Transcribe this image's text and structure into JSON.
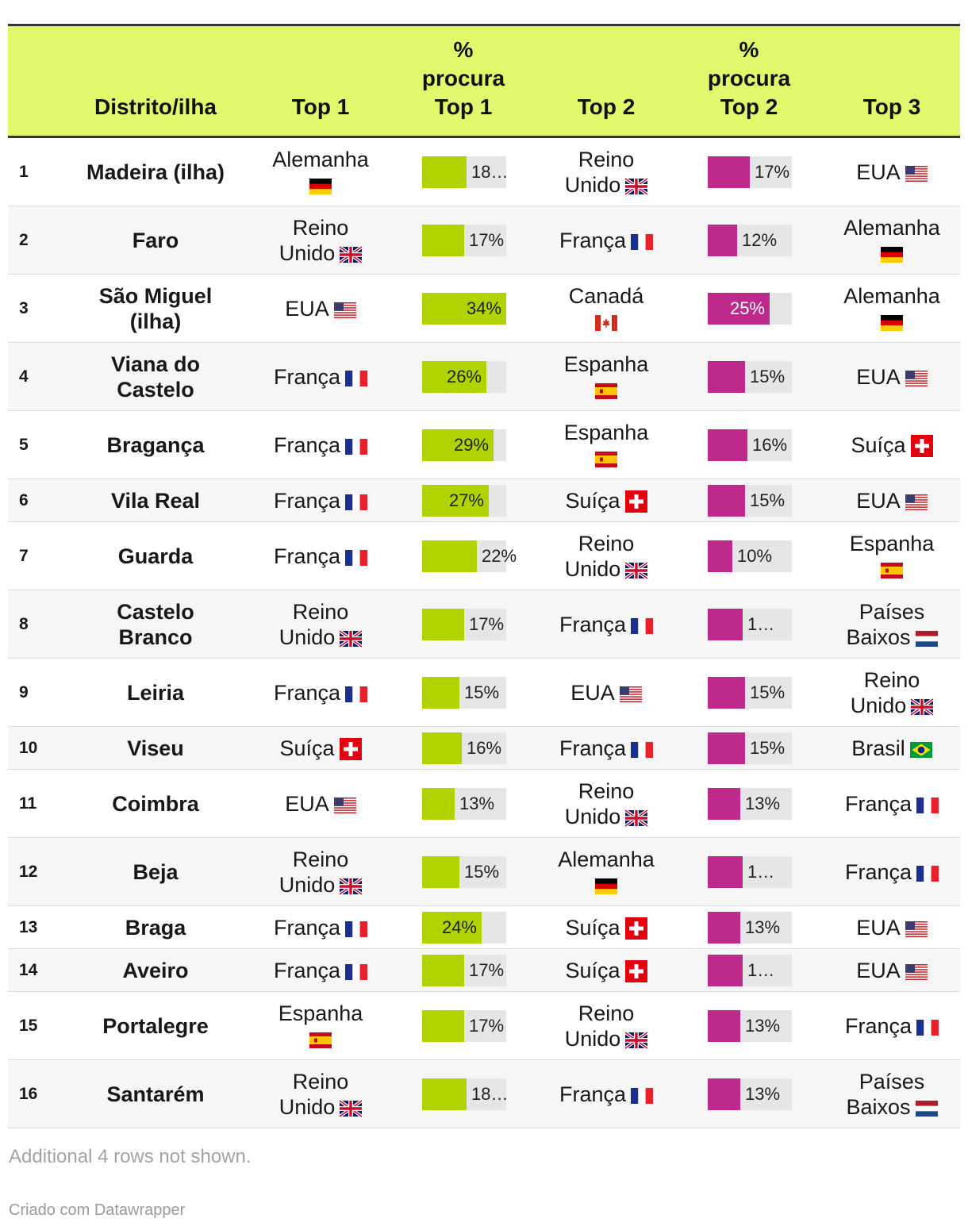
{
  "chart_data": {
    "type": "table",
    "columns": {
      "rank": "",
      "district": "Distrito/ilha",
      "top1": "Top 1",
      "pct_top1": [
        "%",
        "procura",
        "Top 1"
      ],
      "top2": "Top 2",
      "pct_top2": [
        "%",
        "procura",
        "Top 2"
      ],
      "top3": "Top 3"
    },
    "colors": {
      "header_bg": "#e2f86c",
      "bar_top1": "#b1d300",
      "bar_top2": "#bd2a8b",
      "track": "#e6e6e6"
    },
    "rows": [
      {
        "rank": "1",
        "district": "Madeira (ilha)",
        "top1": "Alemanha",
        "top1_flag": "de",
        "pct1": 18,
        "pct1_label": "18…",
        "top2": "Reino Unido",
        "top2_flag": "gb",
        "pct2": 17,
        "pct2_label": "17%",
        "top3": "EUA",
        "top3_flag": "us"
      },
      {
        "rank": "2",
        "district": "Faro",
        "top1": "Reino Unido",
        "top1_flag": "gb",
        "pct1": 17,
        "pct1_label": "17%",
        "top2": "França",
        "top2_flag": "fr",
        "pct2": 12,
        "pct2_label": "12%",
        "top3": "Alemanha",
        "top3_flag": "de"
      },
      {
        "rank": "3",
        "district": "São Miguel (ilha)",
        "top1": "EUA",
        "top1_flag": "us",
        "pct1": 34,
        "pct1_label": "34%",
        "top2": "Canadá",
        "top2_flag": "ca",
        "pct2": 25,
        "pct2_label": "25%",
        "top3": "Alemanha",
        "top3_flag": "de"
      },
      {
        "rank": "4",
        "district": "Viana do Castelo",
        "top1": "França",
        "top1_flag": "fr",
        "pct1": 26,
        "pct1_label": "26%",
        "top2": "Espanha",
        "top2_flag": "es",
        "pct2": 15,
        "pct2_label": "15%",
        "top3": "EUA",
        "top3_flag": "us"
      },
      {
        "rank": "5",
        "district": "Bragança",
        "top1": "França",
        "top1_flag": "fr",
        "pct1": 29,
        "pct1_label": "29%",
        "top2": "Espanha",
        "top2_flag": "es",
        "pct2": 16,
        "pct2_label": "16%",
        "top3": "Suíça",
        "top3_flag": "ch"
      },
      {
        "rank": "6",
        "district": "Vila Real",
        "top1": "França",
        "top1_flag": "fr",
        "pct1": 27,
        "pct1_label": "27%",
        "top2": "Suíça",
        "top2_flag": "ch",
        "pct2": 15,
        "pct2_label": "15%",
        "top3": "EUA",
        "top3_flag": "us"
      },
      {
        "rank": "7",
        "district": "Guarda",
        "top1": "França",
        "top1_flag": "fr",
        "pct1": 22,
        "pct1_label": "22%",
        "top2": "Reino Unido",
        "top2_flag": "gb",
        "pct2": 10,
        "pct2_label": "10%",
        "top3": "Espanha",
        "top3_flag": "es"
      },
      {
        "rank": "8",
        "district": "Castelo Branco",
        "top1": "Reino Unido",
        "top1_flag": "gb",
        "pct1": 17,
        "pct1_label": "17%",
        "top2": "França",
        "top2_flag": "fr",
        "pct2": 14,
        "pct2_label": "1…",
        "top3": "Países Baixos",
        "top3_flag": "nl"
      },
      {
        "rank": "9",
        "district": "Leiria",
        "top1": "França",
        "top1_flag": "fr",
        "pct1": 15,
        "pct1_label": "15%",
        "top2": "EUA",
        "top2_flag": "us",
        "pct2": 15,
        "pct2_label": "15%",
        "top3": "Reino Unido",
        "top3_flag": "gb"
      },
      {
        "rank": "10",
        "district": "Viseu",
        "top1": "Suíça",
        "top1_flag": "ch",
        "pct1": 16,
        "pct1_label": "16%",
        "top2": "França",
        "top2_flag": "fr",
        "pct2": 15,
        "pct2_label": "15%",
        "top3": "Brasil",
        "top3_flag": "br"
      },
      {
        "rank": "11",
        "district": "Coimbra",
        "top1": "EUA",
        "top1_flag": "us",
        "pct1": 13,
        "pct1_label": "13%",
        "top2": "Reino Unido",
        "top2_flag": "gb",
        "pct2": 13,
        "pct2_label": "13%",
        "top3": "França",
        "top3_flag": "fr"
      },
      {
        "rank": "12",
        "district": "Beja",
        "top1": "Reino Unido",
        "top1_flag": "gb",
        "pct1": 15,
        "pct1_label": "15%",
        "top2": "Alemanha",
        "top2_flag": "de",
        "pct2": 14,
        "pct2_label": "1…",
        "top3": "França",
        "top3_flag": "fr"
      },
      {
        "rank": "13",
        "district": "Braga",
        "top1": "França",
        "top1_flag": "fr",
        "pct1": 24,
        "pct1_label": "24%",
        "top2": "Suíça",
        "top2_flag": "ch",
        "pct2": 13,
        "pct2_label": "13%",
        "top3": "EUA",
        "top3_flag": "us"
      },
      {
        "rank": "14",
        "district": "Aveiro",
        "top1": "França",
        "top1_flag": "fr",
        "pct1": 17,
        "pct1_label": "17%",
        "top2": "Suíça",
        "top2_flag": "ch",
        "pct2": 14,
        "pct2_label": "1…",
        "top3": "EUA",
        "top3_flag": "us"
      },
      {
        "rank": "15",
        "district": "Portalegre",
        "top1": "Espanha",
        "top1_flag": "es",
        "pct1": 17,
        "pct1_label": "17%",
        "top2": "Reino Unido",
        "top2_flag": "gb",
        "pct2": 13,
        "pct2_label": "13%",
        "top3": "França",
        "top3_flag": "fr"
      },
      {
        "rank": "16",
        "district": "Santarém",
        "top1": "Reino Unido",
        "top1_flag": "gb",
        "pct1": 18,
        "pct1_label": "18…",
        "top2": "França",
        "top2_flag": "fr",
        "pct2": 13,
        "pct2_label": "13%",
        "top3": "Países Baixos",
        "top3_flag": "nl"
      }
    ]
  },
  "footer": {
    "note": "Additional 4 rows not shown.",
    "credit": "Criado com Datawrapper"
  }
}
